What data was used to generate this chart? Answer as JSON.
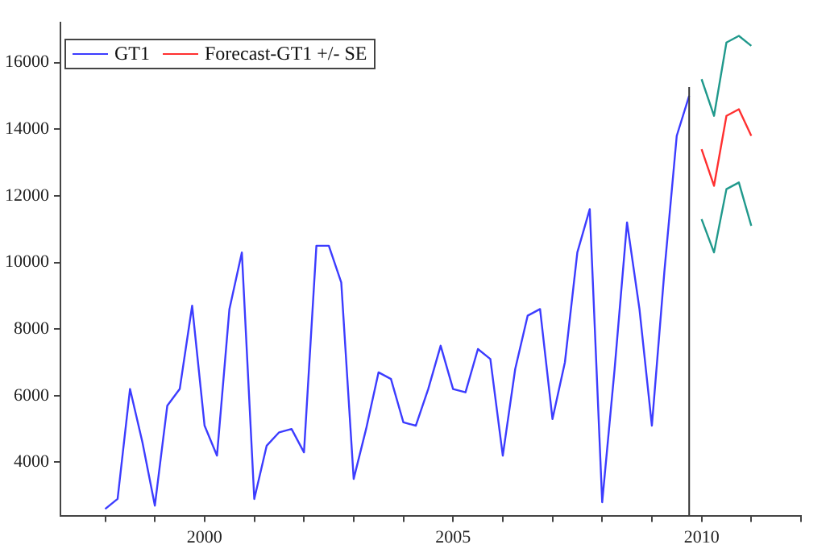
{
  "chart_data": {
    "type": "line",
    "legend": "top left",
    "grid": false,
    "marker": "none",
    "line_style": "solid",
    "xlim": [
      1997.1,
      2012.0
    ],
    "xticks": [
      {
        "value": 1998,
        "label": null
      },
      {
        "value": 1999,
        "label": null
      },
      2000,
      {
        "value": 2001,
        "label": null
      },
      {
        "value": 2002,
        "label": null
      },
      {
        "value": 2003,
        "label": null
      },
      {
        "value": 2004,
        "label": null
      },
      2005,
      {
        "value": 2006,
        "label": null
      },
      {
        "value": 2007,
        "label": null
      },
      {
        "value": 2008,
        "label": null
      },
      {
        "value": 2009,
        "label": null
      },
      2010,
      {
        "value": 2011,
        "label": null
      },
      {
        "value": 2012,
        "label": null
      }
    ],
    "ylim": [
      2400,
      17200
    ],
    "yticks": [
      4000,
      6000,
      8000,
      10000,
      12000,
      14000,
      16000
    ],
    "ref_lines": [
      {
        "axis": "x",
        "value": 2009.75,
        "color": "#333333"
      }
    ],
    "series": [
      {
        "name": "GT1",
        "color": "#3c3cff",
        "x": [
          1998,
          1998.25,
          1998.5,
          1998.75,
          1999,
          1999.25,
          1999.5,
          1999.75,
          2000,
          2000.25,
          2000.5,
          2000.75,
          2001,
          2001.25,
          2001.5,
          2001.75,
          2002,
          2002.25,
          2002.5,
          2002.75,
          2003,
          2003.25,
          2003.5,
          2003.75,
          2004,
          2004.25,
          2004.5,
          2004.75,
          2005,
          2005.25,
          2005.5,
          2005.75,
          2006,
          2006.25,
          2006.5,
          2006.75,
          2007,
          2007.25,
          2007.5,
          2007.75,
          2008,
          2008.25,
          2008.5,
          2008.75,
          2009,
          2009.25,
          2009.5,
          2009.75
        ],
        "values": [
          2600,
          2900,
          6200,
          4600,
          2700,
          5700,
          6200,
          8700,
          5100,
          4200,
          8600,
          10300,
          2900,
          4500,
          4900,
          5000,
          4300,
          10500,
          10500,
          9400,
          3500,
          5000,
          6700,
          6500,
          5200,
          5100,
          6200,
          7500,
          6200,
          6100,
          7400,
          7100,
          4200,
          6800,
          8400,
          8600,
          5300,
          7000,
          10300,
          11600,
          2800,
          6800,
          11200,
          8600,
          5100,
          9700,
          13800,
          15000
        ]
      },
      {
        "name": "Forecast-GT1 +/- SE",
        "color": "#ff3030",
        "x": [
          2010,
          2010.25,
          2010.5,
          2010.75,
          2011
        ],
        "values": [
          13400,
          12300,
          14400,
          14600,
          13800
        ]
      },
      {
        "color": "#20998c",
        "x": [
          2010,
          2010.25,
          2010.5,
          2010.75,
          2011
        ],
        "values": [
          15500,
          14400,
          16600,
          16800,
          16500
        ]
      },
      {
        "color": "#20998c",
        "x": [
          2010,
          2010.25,
          2010.5,
          2010.75,
          2011
        ],
        "values": [
          11300,
          10300,
          12200,
          12400,
          11100
        ]
      }
    ]
  }
}
